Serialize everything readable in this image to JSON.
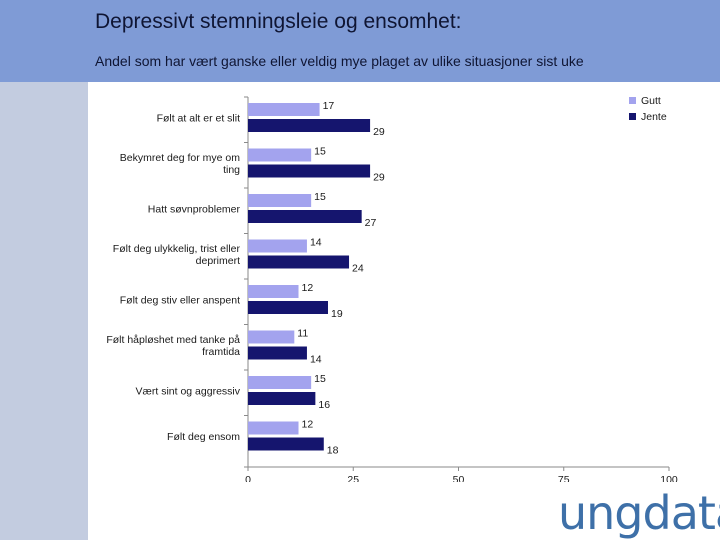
{
  "header": {
    "title": "Depressivt stemningsleie og ensomhet:",
    "subtitle": "Andel som har vært ganske eller veldig mye plaget av ulike situasjoner sist uke"
  },
  "logo_text": "ungdata",
  "colors": {
    "header_bg": "#7f9bd6",
    "sidebar_bg": "#c3cce0",
    "gutt": "#a3a3ee",
    "jente": "#15156e"
  },
  "chart_data": {
    "type": "bar",
    "orientation": "horizontal",
    "categories": [
      [
        "Følt at alt er et slit"
      ],
      [
        "Bekymret deg for mye om",
        "ting"
      ],
      [
        "Hatt søvnproblemer"
      ],
      [
        "Følt deg ulykkelig, trist eller",
        "deprimert"
      ],
      [
        "Følt deg stiv eller anspent"
      ],
      [
        "Følt håpløshet med tanke på",
        "framtida"
      ],
      [
        "Vært sint og aggressiv"
      ],
      [
        "Følt deg ensom"
      ]
    ],
    "series": [
      {
        "name": "Gutt",
        "values": [
          17,
          15,
          15,
          14,
          12,
          11,
          15,
          12
        ]
      },
      {
        "name": "Jente",
        "values": [
          29,
          29,
          27,
          24,
          19,
          14,
          16,
          18
        ]
      }
    ],
    "xlim": [
      0,
      100
    ],
    "xticks": [
      0,
      25,
      50,
      75,
      100
    ],
    "legend": "top-right",
    "title": "",
    "xlabel": "",
    "ylabel": ""
  }
}
